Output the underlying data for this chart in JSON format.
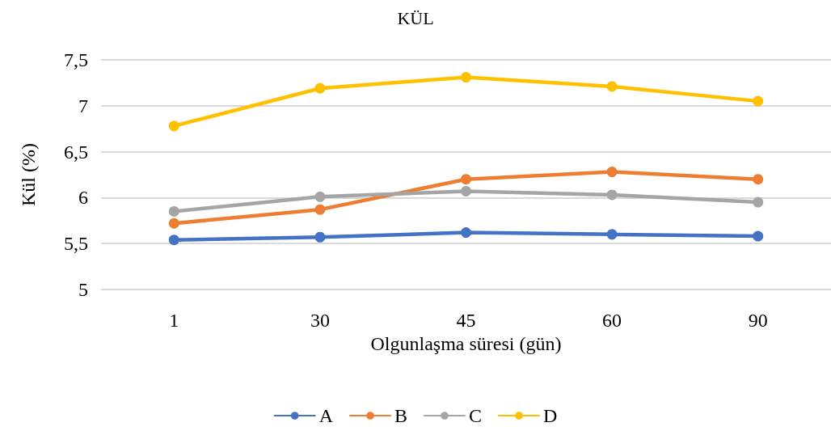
{
  "chart_data": {
    "type": "line",
    "title": "KÜL",
    "xlabel": "Olgunlaşma süresi (gün)",
    "ylabel": "Kül (%)",
    "categories": [
      "1",
      "30",
      "45",
      "60",
      "90"
    ],
    "series": [
      {
        "name": "A",
        "color": "#4472c4",
        "values": [
          5.54,
          5.57,
          5.62,
          5.6,
          5.58
        ]
      },
      {
        "name": "B",
        "color": "#ed7d31",
        "values": [
          5.72,
          5.87,
          6.2,
          6.28,
          6.2
        ]
      },
      {
        "name": "C",
        "color": "#a5a5a5",
        "values": [
          5.85,
          6.01,
          6.07,
          6.03,
          5.95
        ]
      },
      {
        "name": "D",
        "color": "#ffc000",
        "values": [
          6.78,
          7.19,
          7.31,
          7.21,
          7.05
        ]
      }
    ],
    "ylim": [
      5,
      7.5
    ],
    "yticks": [
      5,
      {
        "value": 5.5,
        "label": "5,5"
      },
      6,
      {
        "value": 6.5,
        "label": "6,5"
      },
      7,
      {
        "value": 7.5,
        "label": "7,5"
      }
    ],
    "grid": "y",
    "legend": "bottom",
    "marker": "circle",
    "line_style": "solid"
  }
}
